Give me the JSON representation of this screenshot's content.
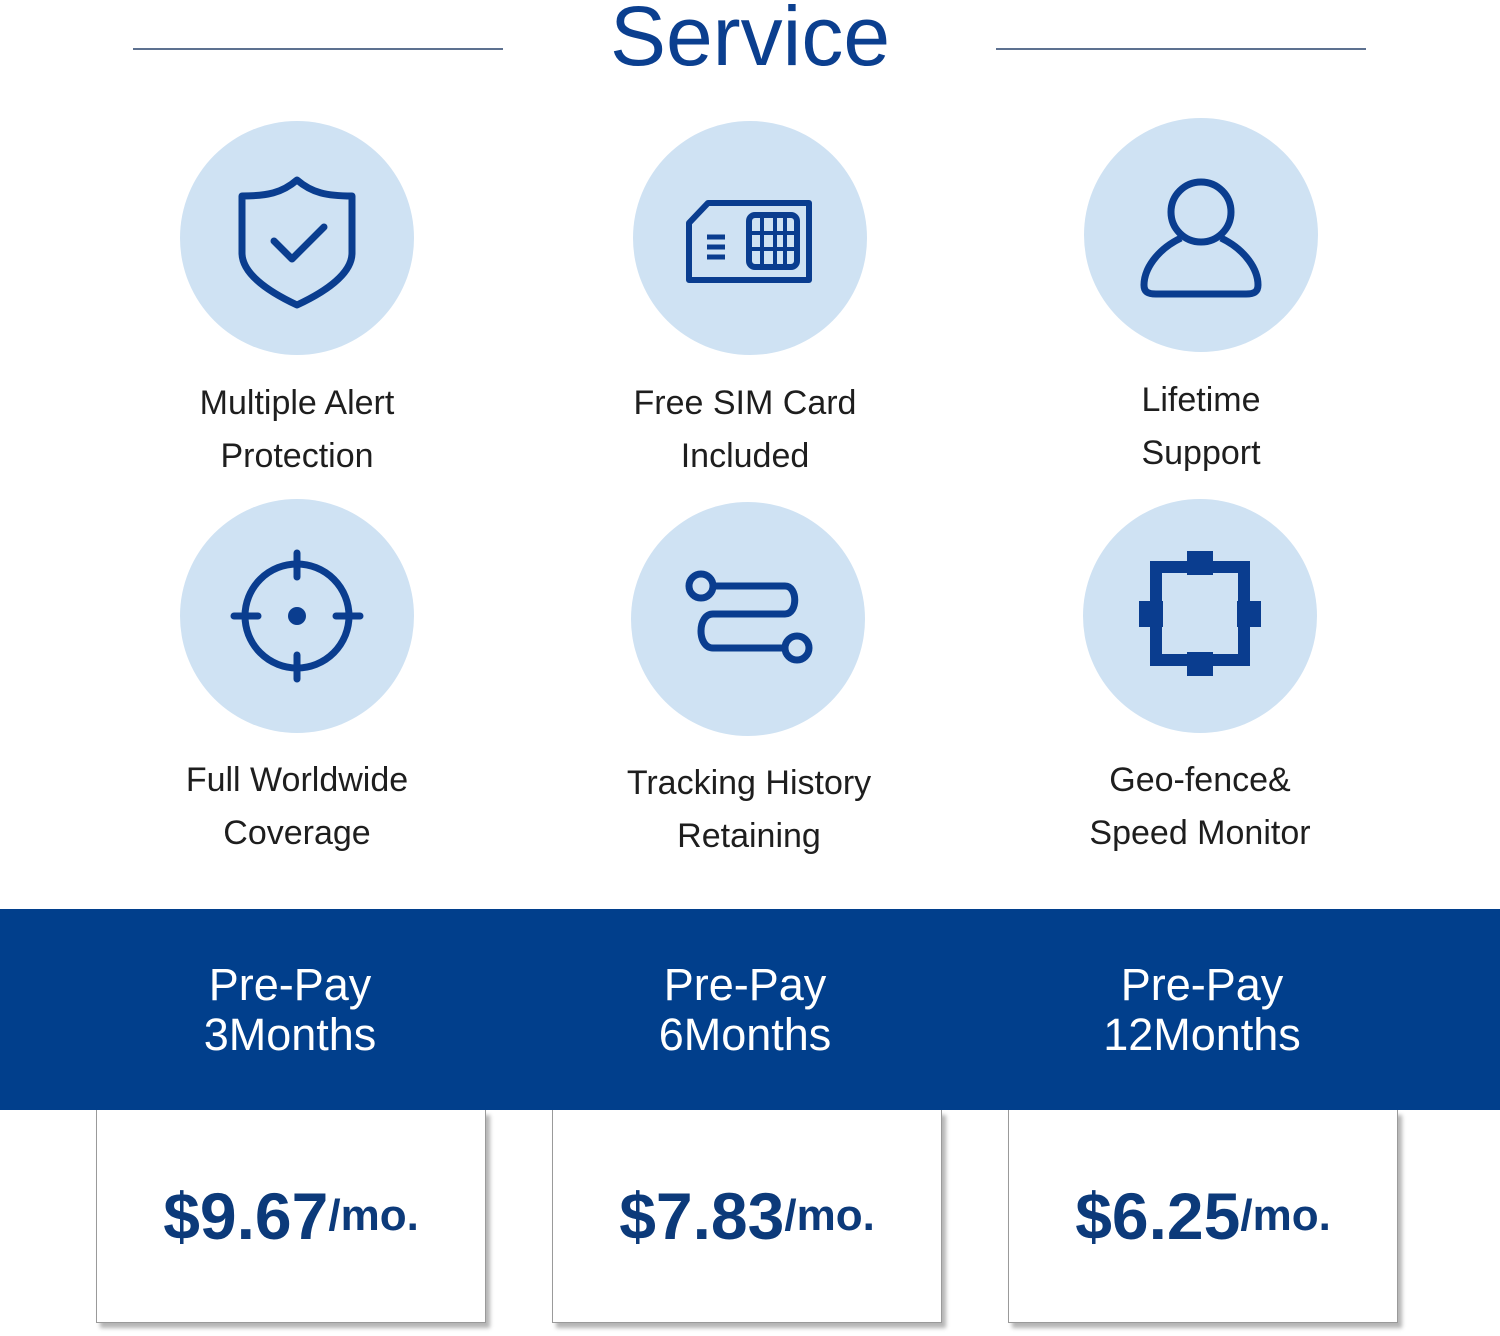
{
  "header": {
    "title": "Service"
  },
  "colors": {
    "accent": "#013f8c",
    "icon": "#0a3d8f",
    "circle": "#cfe2f3"
  },
  "features": [
    {
      "icon": "shield-check-icon",
      "line1": "Multiple Alert",
      "line2": "Protection"
    },
    {
      "icon": "sim-card-icon",
      "line1": "Free SIM Card",
      "line2": "Included"
    },
    {
      "icon": "user-icon",
      "line1": "Lifetime",
      "line2": "Support"
    },
    {
      "icon": "crosshair-icon",
      "line1": "Full Worldwide",
      "line2": "Coverage"
    },
    {
      "icon": "route-icon",
      "line1": "Tracking History",
      "line2": "Retaining"
    },
    {
      "icon": "geofence-icon",
      "line1": "Geo-fence&",
      "line2": "Speed Monitor"
    }
  ],
  "plans": [
    {
      "line1": "Pre-Pay",
      "line2": "3Months",
      "price": "$9.67",
      "unit": "/mo."
    },
    {
      "line1": "Pre-Pay",
      "line2": "6Months",
      "price": "$7.83",
      "unit": "/mo."
    },
    {
      "line1": "Pre-Pay",
      "line2": "12Months",
      "price": "$6.25",
      "unit": "/mo."
    }
  ]
}
